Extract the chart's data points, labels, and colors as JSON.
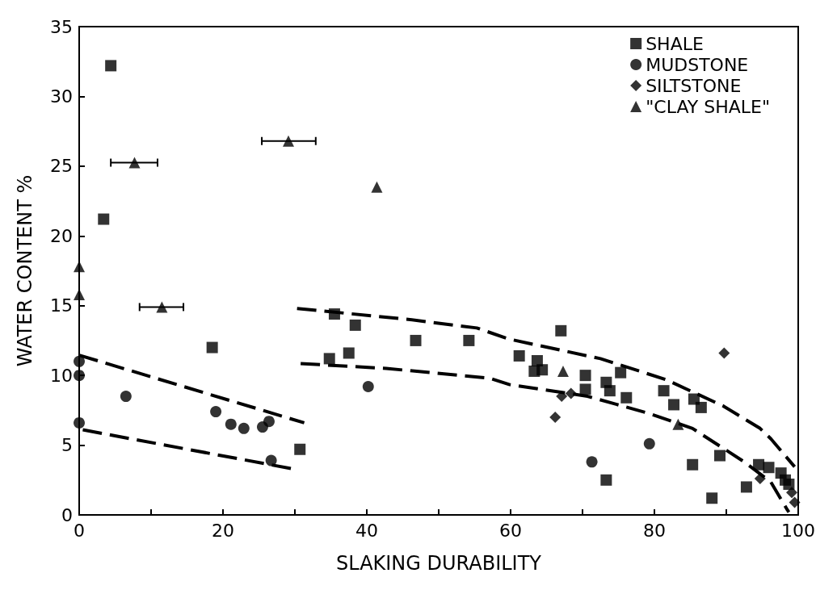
{
  "chart_data": {
    "type": "scatter",
    "xlabel": "SLAKING DURABILITY",
    "ylabel": "WATER CONTENT %",
    "xlim": [
      0,
      100
    ],
    "ylim": [
      0,
      35
    ],
    "xticks": [
      0,
      {
        "value": 10,
        "label": null
      },
      20,
      {
        "value": 30,
        "label": null
      },
      40,
      {
        "value": 50,
        "label": null
      },
      60,
      {
        "value": 70,
        "label": null
      },
      80,
      {
        "value": 90,
        "label": null
      },
      100
    ],
    "yticks": [
      0,
      5,
      10,
      15,
      20,
      25,
      30,
      35
    ],
    "grid": false,
    "legend": "top right",
    "series": [
      {
        "name": "SHALE",
        "color": "#000000",
        "marker": "square",
        "x": [
          4.4,
          3.4,
          18.5,
          30.7,
          35.5,
          34.8,
          37.5,
          38.4,
          46.8,
          54.2,
          61.2,
          67.0,
          63.7,
          63.3,
          64.4,
          70.4,
          70.4,
          73.3,
          73.8,
          75.3,
          76.1,
          81.3,
          82.7,
          85.5,
          86.5,
          73.3,
          85.3,
          89.1,
          88.0,
          92.8,
          94.5,
          95.9,
          97.6,
          98.2,
          98.7
        ],
        "values": [
          32.2,
          21.2,
          12.0,
          4.7,
          14.4,
          11.2,
          11.6,
          13.6,
          12.5,
          12.5,
          11.4,
          13.2,
          11.05,
          10.3,
          10.4,
          10.0,
          9.0,
          9.5,
          8.9,
          10.2,
          8.4,
          8.9,
          7.9,
          8.3,
          7.7,
          2.5,
          3.6,
          4.25,
          1.2,
          2.0,
          3.6,
          3.4,
          3.0,
          2.5,
          2.2
        ]
      },
      {
        "name": "MUDSTONE",
        "color": "#000000",
        "marker": "circle",
        "x": [
          0,
          0,
          0,
          6.5,
          19.0,
          21.1,
          22.9,
          25.5,
          26.4,
          26.7,
          40.2,
          79.3,
          71.3
        ],
        "values": [
          11.0,
          10.0,
          6.6,
          8.5,
          7.4,
          6.5,
          6.2,
          6.3,
          6.7,
          3.9,
          9.2,
          5.1,
          3.8
        ]
      },
      {
        "name": "SILTSTONE",
        "color": "#000000",
        "marker": "diamond",
        "x": [
          67.1,
          68.4,
          66.2,
          89.7,
          94.7,
          99.1,
          99.5
        ],
        "values": [
          8.5,
          8.7,
          7.0,
          11.6,
          2.6,
          1.6,
          0.9
        ]
      },
      {
        "name": "\"CLAY SHALE\"",
        "color": "#000000",
        "marker": "triangle",
        "x": [
          0,
          0,
          7.7,
          11.5,
          29.1,
          41.4,
          67.3,
          83.3
        ],
        "values": [
          17.8,
          15.8,
          25.25,
          14.9,
          26.8,
          23.5,
          10.3,
          6.5
        ],
        "xerrors": [
          null,
          null,
          [
            4.4,
            10.9
          ],
          [
            8.4,
            14.5
          ],
          [
            25.4,
            32.9
          ],
          null,
          null,
          null
        ]
      },
      {
        "type": "line",
        "color": "#000000",
        "marker": "none",
        "line_style": "dashed",
        "x": [
          0,
          31.3
        ],
        "values": [
          11.45,
          6.6
        ]
      },
      {
        "type": "line",
        "color": "#000000",
        "marker": "none",
        "line_style": "dashed",
        "x": [
          0.5,
          29.7
        ],
        "values": [
          6.1,
          3.3
        ]
      },
      {
        "type": "line",
        "color": "#000000",
        "marker": "none",
        "line_style": "dashed",
        "x": [
          30.3,
          46,
          55.3,
          59.8,
          72.5,
          81.6,
          89.6,
          94.7,
          96.2,
          99.5
        ],
        "values": [
          14.8,
          14.0,
          13.4,
          12.6,
          11.2,
          9.7,
          7.8,
          6.2,
          5.45,
          3.45
        ]
      },
      {
        "type": "line",
        "color": "#000000",
        "marker": "none",
        "line_style": "dashed",
        "x": [
          30.8,
          42.7,
          57.1,
          59.8,
          70.7,
          79.1,
          85.3,
          92.5,
          96.2,
          98.5,
          98.7
        ],
        "values": [
          10.85,
          10.5,
          9.8,
          9.35,
          8.5,
          7.3,
          6.2,
          3.8,
          2.35,
          0.35,
          0.2
        ]
      }
    ]
  }
}
